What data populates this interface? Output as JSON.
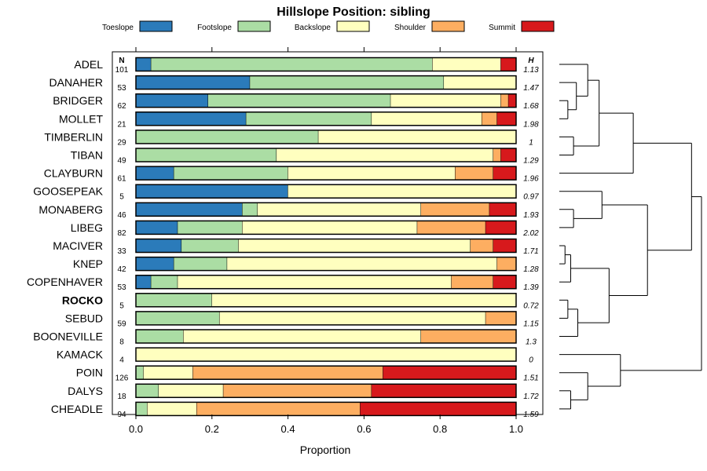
{
  "chart_data": {
    "type": "bar",
    "orientation": "horizontal",
    "stacked": true,
    "title": "Hillslope Position: sibling",
    "xlabel": "Proportion",
    "ylabel": "",
    "xlim": [
      0,
      1
    ],
    "xticks": [
      "0.0",
      "0.2",
      "0.4",
      "0.6",
      "0.8",
      "1.0"
    ],
    "legend_position": "top",
    "n_header": "N",
    "h_header": "H",
    "highlight": "ROCKO",
    "series": [
      {
        "name": "Toeslope",
        "color": "#2b7bba"
      },
      {
        "name": "Footslope",
        "color": "#abdda4"
      },
      {
        "name": "Backslope",
        "color": "#ffffbf"
      },
      {
        "name": "Shoulder",
        "color": "#fdae61"
      },
      {
        "name": "Summit",
        "color": "#d7191c"
      }
    ],
    "rows": [
      {
        "name": "ADEL",
        "n": "101",
        "h": "1.13",
        "values": [
          0.04,
          0.74,
          0.18,
          0.0,
          0.04
        ]
      },
      {
        "name": "DANAHER",
        "n": "53",
        "h": "1.47",
        "values": [
          0.3,
          0.51,
          0.19,
          0.0,
          0.0
        ]
      },
      {
        "name": "BRIDGER",
        "n": "62",
        "h": "1.68",
        "values": [
          0.19,
          0.48,
          0.29,
          0.02,
          0.02
        ]
      },
      {
        "name": "MOLLET",
        "n": "21",
        "h": "1.98",
        "values": [
          0.29,
          0.33,
          0.29,
          0.04,
          0.05
        ]
      },
      {
        "name": "TIMBERLIN",
        "n": "29",
        "h": "1",
        "values": [
          0.0,
          0.48,
          0.52,
          0.0,
          0.0
        ]
      },
      {
        "name": "TIBAN",
        "n": "49",
        "h": "1.29",
        "values": [
          0.0,
          0.37,
          0.57,
          0.02,
          0.04
        ]
      },
      {
        "name": "CLAYBURN",
        "n": "61",
        "h": "1.96",
        "values": [
          0.1,
          0.3,
          0.44,
          0.1,
          0.06
        ]
      },
      {
        "name": "GOOSEPEAK",
        "n": "5",
        "h": "0.97",
        "values": [
          0.4,
          0.0,
          0.6,
          0.0,
          0.0
        ]
      },
      {
        "name": "MONABERG",
        "n": "46",
        "h": "1.93",
        "values": [
          0.28,
          0.04,
          0.43,
          0.18,
          0.07
        ]
      },
      {
        "name": "LIBEG",
        "n": "82",
        "h": "2.02",
        "values": [
          0.11,
          0.17,
          0.46,
          0.18,
          0.08
        ]
      },
      {
        "name": "MACIVER",
        "n": "33",
        "h": "1.71",
        "values": [
          0.12,
          0.15,
          0.61,
          0.06,
          0.06
        ]
      },
      {
        "name": "KNEP",
        "n": "42",
        "h": "1.28",
        "values": [
          0.1,
          0.14,
          0.71,
          0.05,
          0.0
        ]
      },
      {
        "name": "COPENHAVER",
        "n": "53",
        "h": "1.39",
        "values": [
          0.04,
          0.07,
          0.72,
          0.11,
          0.06
        ]
      },
      {
        "name": "ROCKO",
        "n": "5",
        "h": "0.72",
        "values": [
          0.0,
          0.2,
          0.8,
          0.0,
          0.0
        ]
      },
      {
        "name": "SEBUD",
        "n": "59",
        "h": "1.15",
        "values": [
          0.0,
          0.22,
          0.7,
          0.08,
          0.0
        ]
      },
      {
        "name": "BOONEVILLE",
        "n": "8",
        "h": "1.3",
        "values": [
          0.0,
          0.125,
          0.625,
          0.25,
          0.0
        ]
      },
      {
        "name": "KAMACK",
        "n": "4",
        "h": "0",
        "values": [
          0.0,
          0.0,
          1.0,
          0.0,
          0.0
        ]
      },
      {
        "name": "POIN",
        "n": "126",
        "h": "1.51",
        "values": [
          0.0,
          0.02,
          0.13,
          0.5,
          0.35
        ]
      },
      {
        "name": "DALYS",
        "n": "18",
        "h": "1.72",
        "values": [
          0.0,
          0.06,
          0.17,
          0.39,
          0.38
        ]
      },
      {
        "name": "CHEADLE",
        "n": "94",
        "h": "1.59",
        "values": [
          0.0,
          0.03,
          0.13,
          0.43,
          0.41
        ]
      }
    ],
    "dendrogram": {
      "tree": [
        [
          [
            [
              [
                0,
                [
                  1,
                  [
                    2,
                    3
                  ]
                ]
              ],
              [
                4,
                5
              ]
            ],
            6
          ],
          [
            [
              7,
              [
                8,
                9
              ]
            ],
            [
              [
                [
                  10,
                  11
                ],
                12
              ],
              [
                [
                  13,
                  14
                ],
                15
              ]
            ]
          ]
        ],
        [
          16,
          [
            17,
            [
              18,
              19
            ]
          ]
        ]
      ],
      "heights": {
        "root": 1.0,
        "top_cluster": 0.93,
        "upper_group": 0.52,
        "cluster_adel_tiban": 0.28,
        "cluster_adel_mollet": 0.2,
        "danaher_bridger_mollet": 0.12,
        "bridger_mollet": 0.06,
        "timberlin_tiban": 0.1,
        "lower_group": 0.62,
        "goosepeak_libeg": 0.3,
        "monaberg_libeg": 0.1,
        "maciver_booneville": 0.35,
        "maciver_copenhaver": 0.08,
        "maciver_knep": 0.04,
        "rocko_booneville": 0.13,
        "rocko_sebud": 0.06,
        "kamack_cheadle": 0.43,
        "poin_cheadle": 0.2,
        "dalys_cheadle": 0.08
      }
    }
  }
}
